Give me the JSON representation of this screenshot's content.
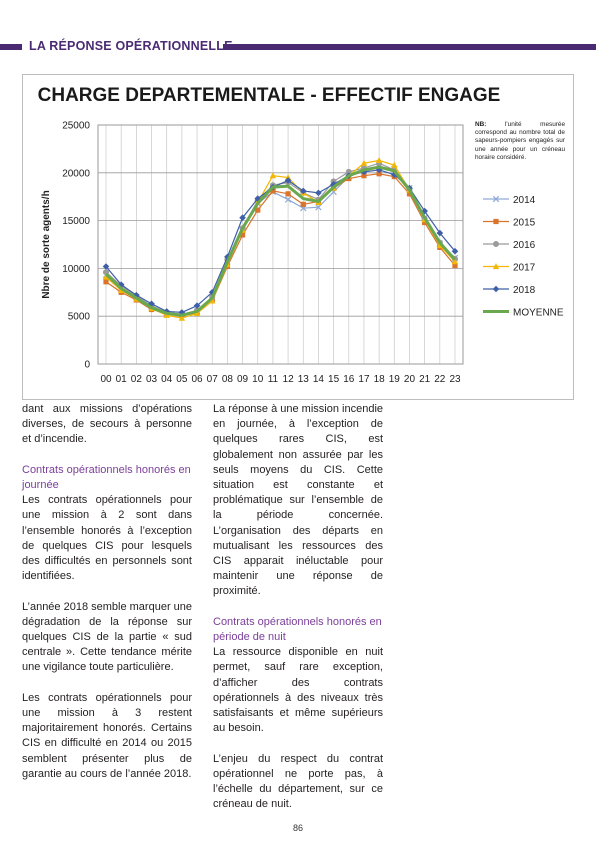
{
  "header": {
    "section_title": "LA RÉPONSE OPÉRATIONNELLE"
  },
  "chart_data": {
    "type": "line",
    "title": "CHARGE DEPARTEMENTALE - EFFECTIF ENGAGE",
    "ylabel": "Nbre de sorte agents/h",
    "xlabel": "",
    "ylim": [
      0,
      25000
    ],
    "yticks": [
      "0",
      "5000",
      "10000",
      "15000",
      "20000",
      "25000"
    ],
    "categories": [
      "00",
      "01",
      "02",
      "03",
      "04",
      "05",
      "06",
      "07",
      "08",
      "09",
      "10",
      "11",
      "12",
      "13",
      "14",
      "15",
      "16",
      "17",
      "18",
      "19",
      "20",
      "21",
      "22",
      "23"
    ],
    "grid": true,
    "legend_position": "right",
    "note_label": "NB:",
    "note": "l'unité mesurée correspond au nombre total de sapeurs-pompiers engagés sur une année pour un créneau horaire considéré.",
    "series": [
      {
        "name": "2014",
        "color": "#8fa9d6",
        "marker": "x",
        "values": [
          9300,
          7900,
          7000,
          6000,
          5300,
          5200,
          5500,
          6900,
          10700,
          14000,
          16800,
          18000,
          17200,
          16300,
          16400,
          18000,
          19600,
          20200,
          20600,
          20400,
          18400,
          15300,
          12600,
          11100
        ]
      },
      {
        "name": "2015",
        "color": "#d9742c",
        "marker": "square",
        "values": [
          8600,
          7500,
          6700,
          5700,
          5300,
          5100,
          5300,
          6600,
          10200,
          13500,
          16100,
          18100,
          17800,
          16700,
          17000,
          18400,
          19400,
          19700,
          19900,
          19600,
          17800,
          14800,
          12200,
          10300
        ]
      },
      {
        "name": "2016",
        "color": "#9b9b9b",
        "marker": "circle",
        "values": [
          9600,
          8200,
          7100,
          6100,
          5400,
          5200,
          5600,
          7000,
          10900,
          14200,
          17100,
          18700,
          19000,
          17900,
          17200,
          19100,
          20100,
          20500,
          21000,
          20300,
          18300,
          15200,
          12700,
          11000
        ]
      },
      {
        "name": "2017",
        "color": "#f2b705",
        "marker": "triangle",
        "values": [
          9100,
          7700,
          6800,
          5800,
          5100,
          4800,
          5300,
          6600,
          10400,
          14000,
          16900,
          19700,
          19500,
          17900,
          16900,
          18400,
          19700,
          21000,
          21300,
          20800,
          18200,
          15100,
          12400,
          10700
        ]
      },
      {
        "name": "2018",
        "color": "#3f5fa8",
        "marker": "diamond",
        "values": [
          10200,
          8300,
          7200,
          6300,
          5500,
          5400,
          6100,
          7500,
          11200,
          15300,
          17300,
          18500,
          19200,
          18100,
          17900,
          18800,
          19700,
          20100,
          20300,
          19800,
          18400,
          16000,
          13700,
          11800
        ]
      },
      {
        "name": "MOYENNE",
        "color": "#6aa84f",
        "marker": "none",
        "values": [
          9400,
          7900,
          6900,
          5900,
          5300,
          5100,
          5500,
          6900,
          10700,
          14200,
          16800,
          18500,
          18600,
          17300,
          17000,
          18500,
          19700,
          20300,
          20600,
          20200,
          18200,
          15300,
          12700,
          10900
        ]
      }
    ]
  },
  "col1": {
    "p1": "dant aux missions d’opérations diverses, de secours à personne et d’incendie.",
    "h1": "Contrats opérationnels honorés en journée",
    "p2": "Les contrats opérationnels pour une mission à 2 sont dans l’ensemble honorés à l’exception de quelques CIS pour lesquels des difficultés en personnels sont identifiées.",
    "p3": "L’année 2018 semble marquer une dégradation de la réponse sur quelques CIS de la partie « sud centrale ». Cette tendance mérite une vigilance toute particulière.",
    "p4": "Les contrats opérationnels pour une mission à 3 restent majoritairement honorés. Certains CIS en difficulté en 2014 ou 2015 semblent présenter plus de garantie au cours de l’année 2018."
  },
  "col2": {
    "p1": "La réponse à une mission incendie en journée, à l’exception de quelques rares CIS, est globalement non assurée par les seuls moyens du CIS. Cette situation est constante et problématique sur l’ensemble de la période concernée. L’organisation des départs en mutualisant les ressources des CIS apparait inéluctable pour maintenir une réponse de proximité.",
    "h1": "Contrats opérationnels honorés en période de nuit",
    "p2": "La ressource disponible en nuit permet, sauf rare exception, d’afficher des contrats opérationnels à des niveaux très satisfaisants et même supérieurs au besoin.",
    "p3": "L’enjeu du respect du contrat opérationnel ne porte pas, à l’échelle du département, sur ce créneau de nuit."
  },
  "footer": {
    "page_number": "86"
  }
}
